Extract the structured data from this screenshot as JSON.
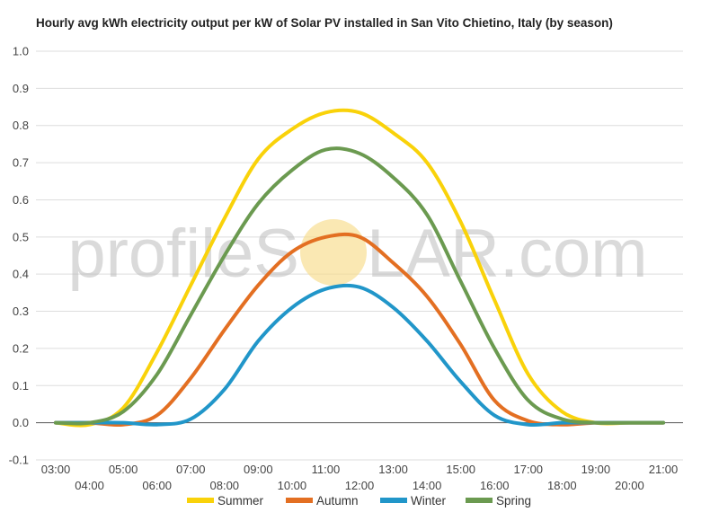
{
  "chart_data": {
    "type": "line",
    "title": "Hourly avg kWh electricity output per kW of Solar PV installed in San Vito Chietino, Italy (by season)",
    "xlabel": "",
    "ylabel": "",
    "x": [
      "03:00",
      "04:00",
      "05:00",
      "06:00",
      "07:00",
      "08:00",
      "09:00",
      "10:00",
      "11:00",
      "12:00",
      "13:00",
      "14:00",
      "15:00",
      "16:00",
      "17:00",
      "18:00",
      "19:00",
      "20:00",
      "21:00"
    ],
    "x_tick_labels_upper": [
      "03:00",
      "05:00",
      "07:00",
      "09:00",
      "11:00",
      "13:00",
      "15:00",
      "17:00",
      "19:00",
      "21:00"
    ],
    "x_tick_labels_lower": [
      "04:00",
      "06:00",
      "08:00",
      "10:00",
      "12:00",
      "14:00",
      "16:00",
      "18:00",
      "20:00"
    ],
    "ylim": [
      -0.1,
      1.0
    ],
    "y_ticks": [
      "-0.1",
      "0.0",
      "0.1",
      "0.2",
      "0.3",
      "0.4",
      "0.5",
      "0.6",
      "0.7",
      "0.8",
      "0.9",
      "1.0"
    ],
    "grid": true,
    "legend_position": "bottom",
    "series": [
      {
        "name": "Summer",
        "color": "#f9d20a",
        "values": [
          0.0,
          -0.005,
          0.04,
          0.19,
          0.37,
          0.55,
          0.71,
          0.79,
          0.835,
          0.835,
          0.78,
          0.7,
          0.54,
          0.33,
          0.13,
          0.03,
          0.0,
          0.0,
          0.0
        ]
      },
      {
        "name": "Autumn",
        "color": "#e36f22",
        "values": [
          0.0,
          0.0,
          -0.005,
          0.02,
          0.12,
          0.25,
          0.37,
          0.46,
          0.5,
          0.5,
          0.43,
          0.34,
          0.21,
          0.06,
          0.005,
          -0.005,
          0.0,
          0.0,
          0.0
        ]
      },
      {
        "name": "Winter",
        "color": "#2196c9",
        "values": [
          0.0,
          0.0,
          0.0,
          -0.005,
          0.01,
          0.09,
          0.22,
          0.31,
          0.36,
          0.365,
          0.31,
          0.22,
          0.11,
          0.02,
          -0.005,
          0.0,
          0.0,
          0.0,
          0.0
        ]
      },
      {
        "name": "Spring",
        "color": "#6b9a50",
        "values": [
          0.0,
          0.0,
          0.03,
          0.13,
          0.29,
          0.45,
          0.59,
          0.68,
          0.735,
          0.725,
          0.66,
          0.56,
          0.38,
          0.2,
          0.06,
          0.01,
          0.0,
          0.0,
          0.0
        ]
      }
    ]
  },
  "watermark": {
    "left": "profileS",
    "right": "LAR.com",
    "sun_color": "#f7dc8a"
  }
}
